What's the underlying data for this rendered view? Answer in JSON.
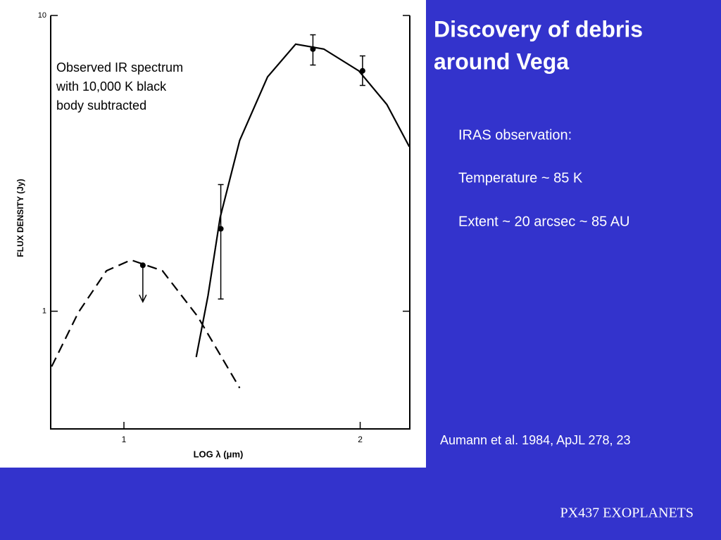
{
  "slide": {
    "title": [
      "Discovery of debris",
      "around Vega"
    ],
    "notes": [
      "IRAS observation:",
      "Temperature ~ 85 K",
      "Extent ~ 20 arcsec ~ 85 AU"
    ],
    "citation": "Aumann et al. 1984, ApJL 278, 23",
    "footer": "PX437 EXOPLANETS"
  },
  "chart_data": {
    "type": "line",
    "annotation": [
      "Observed IR spectrum",
      "with 10,000 K black",
      "body subtracted"
    ],
    "x_label": "LOG λ  (μm)",
    "y_label": "FLUX DENSITY (Jy)",
    "xlim": [
      0.69,
      2.21
    ],
    "xticks": [
      1,
      2
    ],
    "ylim": [
      0.4,
      10
    ],
    "yticks": [
      1,
      10
    ],
    "y_scale": "log",
    "series": [
      {
        "style": "solid",
        "color": "#000000",
        "x": [
          1.306,
          1.356,
          1.407,
          1.49,
          1.608,
          1.727,
          1.846,
          1.994,
          2.113,
          2.208
        ],
        "values": [
          0.7,
          1.13,
          2.07,
          3.78,
          6.2,
          8.0,
          7.7,
          6.5,
          5.0,
          3.6
        ]
      },
      {
        "style": "dashed",
        "color": "#000000",
        "x": [
          0.694,
          0.807,
          0.926,
          1.03,
          1.163,
          1.312,
          1.49
        ],
        "values": [
          0.65,
          0.99,
          1.37,
          1.49,
          1.37,
          0.96,
          0.55
        ]
      }
    ],
    "points": {
      "color": "#000000",
      "x": [
        1.08,
        1.41,
        1.8,
        2.01
      ],
      "values": [
        1.43,
        1.9,
        7.7,
        6.5
      ],
      "lower": [
        null,
        1.1,
        6.8,
        5.8
      ],
      "upper": [
        null,
        2.68,
        8.6,
        7.3
      ],
      "upper_limit": [
        true,
        false,
        false,
        false
      ]
    }
  }
}
